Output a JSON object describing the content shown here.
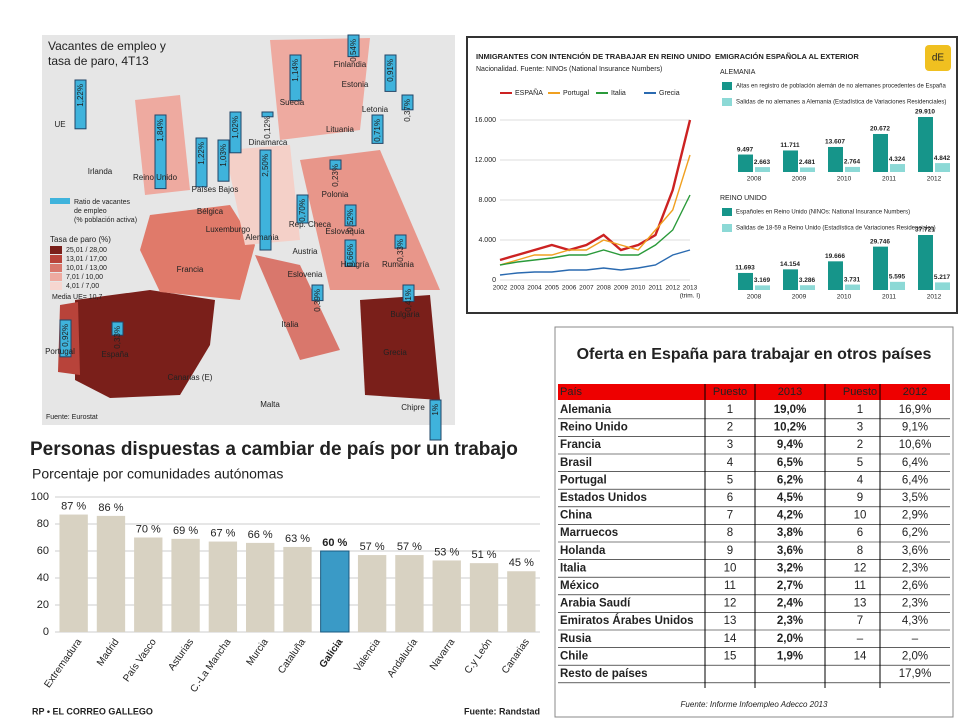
{
  "map": {
    "title_lines": [
      "Vacantes de empleo y",
      "tasa de paro, 4T13"
    ],
    "regions": [
      "UE",
      "Reino Unido",
      "Países Bajos",
      "Bélgica",
      "Luxemburgo",
      "Dinamarca",
      "Alemania",
      "Suecia",
      "Finlandia",
      "Estonia",
      "Letonia",
      "Lituania",
      "Polonia",
      "Rep. Checa",
      "Eslovaquia",
      "Hungría",
      "Rumania",
      "Eslovenia",
      "Bulgaria",
      "Portugal",
      "España",
      "Chipre"
    ],
    "values": [
      1.22,
      1.84,
      1.22,
      1.03,
      1.02,
      0.12,
      2.5,
      1.14,
      0.54,
      0.91,
      0.37,
      0.71,
      0.23,
      0.7,
      0.52,
      0.66,
      0.33,
      0.39,
      0.41,
      0.92,
      0.33,
      1
    ],
    "value_labels": [
      "1,22%",
      "1,84%",
      "1,22%",
      "1,03%",
      "1,02%",
      "0,12%",
      "2,50%",
      "1,14%",
      "0,54%",
      "0,91%",
      "0,37%",
      "0,71%",
      "0,23%",
      "0,70%",
      "0,52%",
      "0,66%",
      "0,33%",
      "0,39%",
      "0,41%",
      "0,92%",
      "0,33%",
      "1%"
    ],
    "places": [
      "Irlanda",
      "Francia",
      "Austria",
      "Italia",
      "Grecia",
      "Malta",
      "Canarias (E)"
    ],
    "ratio_legend": [
      "Ratio de vacantes",
      "de empleo",
      "(% población activa)"
    ],
    "rate_title": "Tasa de paro (%)",
    "rate_classes": [
      "25,01 / 28,00",
      "13,01 / 17,00",
      "10,01 / 13,00",
      "7,01 / 10,00",
      "4,01 / 7,00"
    ],
    "rate_colors": [
      "#7a1f1a",
      "#b8433a",
      "#d9776c",
      "#eeaaa0",
      "#f6d6d0"
    ],
    "mean": "Media UE= 10,7",
    "source": "Fuente: Eurostat"
  },
  "chart_data": [
    {
      "type": "line",
      "title": "INMIGRANTES CON INTENCIÓN DE TRABAJAR EN REINO UNIDO",
      "subtitle": "Nacionalidad. Fuente: NINOs (National Insurance Numbers)",
      "categories": [
        "2002",
        "2003",
        "2004",
        "2005",
        "2006",
        "2007",
        "2008",
        "2009",
        "2010",
        "2011",
        "2012",
        "2013"
      ],
      "x_note": "(trim. I)",
      "series": [
        {
          "name": "ESPAÑA",
          "color": "#cc2222",
          "values": [
            2000,
            2500,
            3000,
            3500,
            3000,
            3500,
            4500,
            3000,
            3500,
            4500,
            9000,
            16000
          ]
        },
        {
          "name": "Portugal",
          "color": "#f0a020",
          "values": [
            1500,
            2000,
            2500,
            2500,
            3000,
            3000,
            4000,
            3500,
            3000,
            5000,
            7000,
            12500
          ]
        },
        {
          "name": "Italia",
          "color": "#2a9a3a",
          "values": [
            1500,
            1800,
            2000,
            2200,
            2500,
            2500,
            3000,
            2500,
            2500,
            3500,
            5000,
            8500
          ]
        },
        {
          "name": "Grecia",
          "color": "#2a6ab0",
          "values": [
            500,
            700,
            800,
            800,
            1000,
            1000,
            1200,
            1000,
            1200,
            1500,
            2500,
            3000
          ]
        }
      ],
      "ylim": [
        0,
        16000
      ],
      "yticks": [
        0,
        {
          "value": 4000,
          "label": "4.000"
        },
        {
          "value": 8000,
          "label": "8.000"
        },
        {
          "value": 12000,
          "label": "12.000"
        },
        {
          "value": 16000,
          "label": "16.000"
        }
      ],
      "grid": true
    },
    {
      "type": "bar",
      "title": "EMIGRACIÓN ESPAÑOLA AL EXTERIOR",
      "logo": "dE",
      "section": "ALEMANIA",
      "categories": [
        "2008",
        "2009",
        "2010",
        "2011",
        "2012"
      ],
      "series": [
        {
          "name": "Altas en registro de población alemán de no alemanes procedentes de España",
          "color": "#16958a",
          "values": [
            9497,
            11711,
            13607,
            20672,
            29910
          ],
          "value_labels": [
            "9.497",
            "11.711",
            "13.607",
            "20.672",
            "29.910"
          ]
        },
        {
          "name": "Salidas de no alemanes a Alemania (Estadística de Variaciones Residenciales)",
          "color": "#8cd9d6",
          "values": [
            2663,
            2481,
            2764,
            4324,
            4842
          ],
          "value_labels": [
            "2.663",
            "2.481",
            "2.764",
            "4.324",
            "4.842"
          ]
        }
      ]
    },
    {
      "type": "bar",
      "section": "REINO UNIDO",
      "categories": [
        "2008",
        "2009",
        "2010",
        "2011",
        "2012"
      ],
      "series": [
        {
          "name": "Españoles en Reino Unido (NINOs: National Insurance Numbers)",
          "color": "#16958a",
          "values": [
            11693,
            14154,
            19666,
            29746,
            37721
          ],
          "value_labels": [
            "11.693",
            "14.154",
            "19.666",
            "29.746",
            "37.721"
          ]
        },
        {
          "name": "Salidas de 18-59 a Reino Unido (Estadística de Variaciones Residenciales)",
          "color": "#8cd9d6",
          "values": [
            3169,
            3286,
            3731,
            5595,
            5217
          ],
          "value_labels": [
            "3.169",
            "3.286",
            "3.731",
            "5.595",
            "5.217"
          ]
        }
      ]
    },
    {
      "type": "bar",
      "title": "Personas dispuestas a cambiar de país por un trabajo",
      "subtitle": "Porcentaje por comunidades autónomas",
      "categories": [
        "Extremadura",
        "Madrid",
        "País Vasco",
        "Asturias",
        "C.-La Mancha",
        "Murcia",
        "Cataluña",
        "Galicia",
        "Valencia",
        "Andalucía",
        "Navarra",
        "C.y León",
        "Canarias"
      ],
      "values": [
        87,
        86,
        70,
        69,
        67,
        66,
        63,
        60,
        57,
        57,
        53,
        51,
        45
      ],
      "value_labels": [
        "87 %",
        "86 %",
        "70 %",
        "69 %",
        "67 %",
        "66 %",
        "63 %",
        "60 %",
        "57 %",
        "57 %",
        "53 %",
        "51 %",
        "45 %"
      ],
      "color": "#d8d2c2",
      "highlight": {
        "index": 7,
        "color": "#3a9ac6"
      },
      "ylim": [
        0,
        100
      ],
      "yticks": [
        0,
        20,
        40,
        60,
        80,
        100
      ],
      "grid": true,
      "credit": "RP • EL CORREO GALLEGO",
      "source": "Fuente: Randstad"
    }
  ],
  "table": {
    "title": "Oferta en España para trabajar en otros países",
    "header": [
      "País",
      "Puesto",
      "2013",
      "Puesto",
      "2012"
    ],
    "rows": [
      [
        "Alemania",
        "1",
        "19,0%",
        "1",
        "16,9%"
      ],
      [
        "Reino Unido",
        "2",
        "10,2%",
        "3",
        "9,1%"
      ],
      [
        "Francia",
        "3",
        "9,4%",
        "2",
        "10,6%"
      ],
      [
        "Brasil",
        "4",
        "6,5%",
        "5",
        "6,4%"
      ],
      [
        "Portugal",
        "5",
        "6,2%",
        "4",
        "6,4%"
      ],
      [
        "Estados Unidos",
        "6",
        "4,5%",
        "9",
        "3,5%"
      ],
      [
        "China",
        "7",
        "4,2%",
        "10",
        "2,9%"
      ],
      [
        "Marruecos",
        "8",
        "3,8%",
        "6",
        "6,2%"
      ],
      [
        "Holanda",
        "9",
        "3,6%",
        "8",
        "3,6%"
      ],
      [
        "Italia",
        "10",
        "3,2%",
        "12",
        "2,3%"
      ],
      [
        "México",
        "11",
        "2,7%",
        "11",
        "2,6%"
      ],
      [
        "Arabia Saudí",
        "12",
        "2,4%",
        "13",
        "2,3%"
      ],
      [
        "Emiratos Árabes Unidos",
        "13",
        "2,3%",
        "7",
        "4,3%"
      ],
      [
        "Rusia",
        "14",
        "2,0%",
        "–",
        "–"
      ],
      [
        "Chile",
        "15",
        "1,9%",
        "14",
        "2,0%"
      ],
      [
        "Resto de países",
        null,
        null,
        null,
        "17,9%"
      ]
    ],
    "source": "Fuente: Informe Infoempleo Adecco 2013"
  }
}
